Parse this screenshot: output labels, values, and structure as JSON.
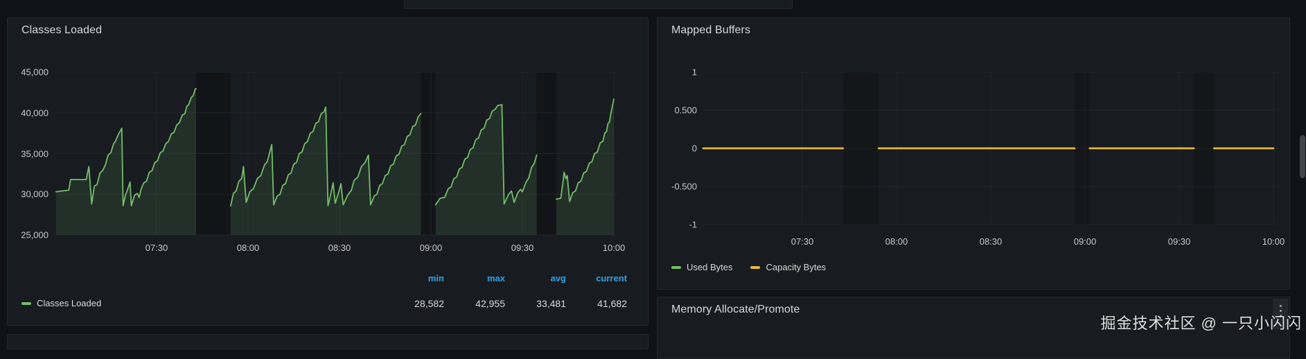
{
  "watermark": "掘金技术社区 @ 一只小闪闪",
  "panels": {
    "memory": {
      "title": "Memory Allocate/Promote"
    }
  },
  "chart_data": [
    {
      "id": "classes-loaded",
      "type": "line",
      "title": "Classes Loaded",
      "x_axis": {
        "ticks": [
          {
            "hour": 7.5,
            "label": "07:30"
          },
          {
            "hour": 8.0,
            "label": "08:00"
          },
          {
            "hour": 8.5,
            "label": "08:30"
          },
          {
            "hour": 9.0,
            "label": "09:00"
          },
          {
            "hour": 9.5,
            "label": "09:30"
          },
          {
            "hour": 10.0,
            "label": "10:00"
          }
        ]
      },
      "y_axis": {
        "min": 25000,
        "max": 45000,
        "ticks": [
          {
            "value": 45000,
            "label": "45,000"
          },
          {
            "value": 40000,
            "label": "40,000"
          },
          {
            "value": 35000,
            "label": "35,000"
          },
          {
            "value": 30000,
            "label": "30,000"
          },
          {
            "value": 25000,
            "label": "25,000"
          }
        ]
      },
      "gaps": [
        [
          7.716,
          7.905
        ],
        [
          8.945,
          9.025
        ],
        [
          9.578,
          9.685
        ]
      ],
      "legend_stats": {
        "headers": [
          "min",
          "max",
          "avg",
          "current"
        ],
        "values": [
          "28,582",
          "42,955",
          "33,481",
          "41,682"
        ]
      },
      "series": [
        {
          "name": "Classes Loaded",
          "color": "#73bf69",
          "fill_opacity": 0.13,
          "segments": [
            [
              [
                6.95,
                30300
              ],
              [
                7.02,
                30500
              ],
              [
                7.03,
                31800
              ],
              [
                7.115,
                31800
              ],
              [
                7.13,
                33400
              ],
              [
                7.145,
                28800
              ],
              [
                7.16,
                31000
              ],
              [
                7.175,
                31200
              ],
              [
                7.19,
                32600
              ],
              [
                7.205,
                32900
              ],
              [
                7.22,
                33600
              ],
              [
                7.235,
                34800
              ],
              [
                7.25,
                35100
              ],
              [
                7.265,
                36200
              ],
              [
                7.275,
                36500
              ],
              [
                7.29,
                37300
              ],
              [
                7.31,
                38100
              ],
              [
                7.317,
                28600
              ],
              [
                7.33,
                29900
              ],
              [
                7.342,
                30600
              ],
              [
                7.355,
                31500
              ],
              [
                7.362,
                28600
              ],
              [
                7.38,
                29900
              ],
              [
                7.395,
                30100
              ],
              [
                7.405,
                29600
              ],
              [
                7.415,
                30600
              ],
              [
                7.43,
                31400
              ],
              [
                7.445,
                31600
              ],
              [
                7.46,
                32700
              ],
              [
                7.475,
                32900
              ],
              [
                7.49,
                33900
              ],
              [
                7.505,
                34100
              ],
              [
                7.52,
                35100
              ],
              [
                7.535,
                35300
              ],
              [
                7.55,
                36200
              ],
              [
                7.565,
                36500
              ],
              [
                7.58,
                37400
              ],
              [
                7.595,
                37600
              ],
              [
                7.61,
                38500
              ],
              [
                7.625,
                38800
              ],
              [
                7.64,
                39700
              ],
              [
                7.655,
                39900
              ],
              [
                7.665,
                40800
              ],
              [
                7.675,
                41000
              ],
              [
                7.69,
                41900
              ],
              [
                7.7,
                42100
              ],
              [
                7.712,
                42955
              ],
              [
                7.716,
                42955
              ]
            ],
            [
              [
                7.905,
                28582
              ],
              [
                7.92,
                30100
              ],
              [
                7.935,
                30400
              ],
              [
                7.95,
                31600
              ],
              [
                7.965,
                31900
              ],
              [
                7.975,
                33400
              ],
              [
                7.99,
                29000
              ],
              [
                8.01,
                30300
              ],
              [
                8.03,
                30700
              ],
              [
                8.05,
                31900
              ],
              [
                8.07,
                32300
              ],
              [
                8.09,
                33600
              ],
              [
                8.105,
                34000
              ],
              [
                8.12,
                35300
              ],
              [
                8.13,
                36100
              ],
              [
                8.14,
                28700
              ],
              [
                8.16,
                29800
              ],
              [
                8.175,
                30000
              ],
              [
                8.19,
                31100
              ],
              [
                8.205,
                31300
              ],
              [
                8.22,
                32400
              ],
              [
                8.235,
                32600
              ],
              [
                8.25,
                33700
              ],
              [
                8.265,
                33900
              ],
              [
                8.28,
                35000
              ],
              [
                8.295,
                35200
              ],
              [
                8.31,
                36200
              ],
              [
                8.325,
                36500
              ],
              [
                8.34,
                37500
              ],
              [
                8.355,
                37700
              ],
              [
                8.37,
                38700
              ],
              [
                8.385,
                38900
              ],
              [
                8.4,
                39900
              ],
              [
                8.415,
                40100
              ],
              [
                8.425,
                40700
              ],
              [
                8.437,
                28582
              ],
              [
                8.45,
                29800
              ],
              [
                8.465,
                31400
              ],
              [
                8.477,
                28900
              ],
              [
                8.495,
                30200
              ],
              [
                8.508,
                31300
              ],
              [
                8.52,
                28700
              ],
              [
                8.545,
                29900
              ],
              [
                8.565,
                30500
              ],
              [
                8.58,
                31700
              ],
              [
                8.6,
                32100
              ],
              [
                8.62,
                33400
              ],
              [
                8.64,
                33900
              ],
              [
                8.658,
                34800
              ],
              [
                8.67,
                28700
              ],
              [
                8.69,
                29800
              ],
              [
                8.705,
                30000
              ],
              [
                8.72,
                31100
              ],
              [
                8.735,
                31300
              ],
              [
                8.75,
                32300
              ],
              [
                8.765,
                32500
              ],
              [
                8.78,
                33500
              ],
              [
                8.795,
                33700
              ],
              [
                8.81,
                34700
              ],
              [
                8.825,
                34900
              ],
              [
                8.84,
                35900
              ],
              [
                8.855,
                36100
              ],
              [
                8.87,
                37100
              ],
              [
                8.885,
                37300
              ],
              [
                8.9,
                38300
              ],
              [
                8.915,
                38500
              ],
              [
                8.93,
                39500
              ],
              [
                8.945,
                39900
              ]
            ],
            [
              [
                9.025,
                28700
              ],
              [
                9.05,
                29500
              ],
              [
                9.075,
                29600
              ],
              [
                9.095,
                30700
              ],
              [
                9.11,
                30900
              ],
              [
                9.125,
                31900
              ],
              [
                9.14,
                32100
              ],
              [
                9.155,
                33100
              ],
              [
                9.17,
                33300
              ],
              [
                9.185,
                34300
              ],
              [
                9.2,
                34500
              ],
              [
                9.215,
                35500
              ],
              [
                9.23,
                35700
              ],
              [
                9.245,
                36700
              ],
              [
                9.26,
                36900
              ],
              [
                9.275,
                37900
              ],
              [
                9.29,
                38100
              ],
              [
                9.305,
                39100
              ],
              [
                9.32,
                39300
              ],
              [
                9.335,
                40200
              ],
              [
                9.35,
                40400
              ],
              [
                9.365,
                40900
              ],
              [
                9.388,
                41000
              ],
              [
                9.4,
                28800
              ],
              [
                9.425,
                30000
              ],
              [
                9.44,
                30400
              ],
              [
                9.455,
                29000
              ],
              [
                9.475,
                30200
              ],
              [
                9.49,
                30600
              ],
              [
                9.5,
                30300
              ],
              [
                9.52,
                31500
              ],
              [
                9.535,
                32000
              ],
              [
                9.55,
                33300
              ],
              [
                9.565,
                33800
              ],
              [
                9.578,
                34800
              ]
            ],
            [
              [
                9.685,
                29400
              ],
              [
                9.71,
                29500
              ],
              [
                9.72,
                31200
              ],
              [
                9.728,
                32700
              ],
              [
                9.737,
                31900
              ],
              [
                9.745,
                32300
              ],
              [
                9.758,
                29100
              ],
              [
                9.775,
                30200
              ],
              [
                9.79,
                30400
              ],
              [
                9.805,
                31400
              ],
              [
                9.82,
                31600
              ],
              [
                9.835,
                32600
              ],
              [
                9.85,
                32800
              ],
              [
                9.865,
                33800
              ],
              [
                9.88,
                34000
              ],
              [
                9.895,
                35000
              ],
              [
                9.91,
                35200
              ],
              [
                9.925,
                36300
              ],
              [
                9.94,
                36500
              ],
              [
                9.95,
                37500
              ],
              [
                9.96,
                37700
              ],
              [
                9.968,
                38700
              ],
              [
                9.976,
                38900
              ],
              [
                9.984,
                40000
              ],
              [
                9.99,
                40600
              ],
              [
                10.0,
                41682
              ]
            ]
          ]
        }
      ]
    },
    {
      "id": "mapped-buffers",
      "type": "line",
      "title": "Mapped Buffers",
      "x_axis": {
        "ticks": [
          {
            "hour": 7.5,
            "label": "07:30"
          },
          {
            "hour": 8.0,
            "label": "08:00"
          },
          {
            "hour": 8.5,
            "label": "08:30"
          },
          {
            "hour": 9.0,
            "label": "09:00"
          },
          {
            "hour": 9.5,
            "label": "09:30"
          },
          {
            "hour": 10.0,
            "label": "10:00"
          }
        ]
      },
      "y_axis": {
        "min": -1,
        "max": 1,
        "ticks": [
          {
            "value": 1,
            "label": "1"
          },
          {
            "value": 0.5,
            "label": "0.500"
          },
          {
            "value": 0,
            "label": "0"
          },
          {
            "value": -0.5,
            "label": "-0.500"
          },
          {
            "value": -1,
            "label": "-1"
          }
        ]
      },
      "gaps": [
        [
          7.716,
          7.905
        ],
        [
          8.945,
          9.025
        ],
        [
          9.578,
          9.685
        ]
      ],
      "series": [
        {
          "name": "Used Bytes",
          "color": "#73bf69",
          "fill_opacity": 0,
          "segments": [
            [
              [
                6.974,
                0
              ],
              [
                7.716,
                0
              ]
            ],
            [
              [
                7.905,
                0
              ],
              [
                8.945,
                0
              ]
            ],
            [
              [
                9.025,
                0
              ],
              [
                9.578,
                0
              ]
            ],
            [
              [
                9.685,
                0
              ],
              [
                10.0,
                0
              ]
            ]
          ]
        },
        {
          "name": "Capacity Bytes",
          "color": "#eab839",
          "fill_opacity": 0,
          "segments": [
            [
              [
                6.974,
                0
              ],
              [
                7.716,
                0
              ]
            ],
            [
              [
                7.905,
                0
              ],
              [
                8.945,
                0
              ]
            ],
            [
              [
                9.025,
                0
              ],
              [
                9.578,
                0
              ]
            ],
            [
              [
                9.685,
                0
              ],
              [
                10.0,
                0
              ]
            ]
          ]
        }
      ]
    }
  ]
}
